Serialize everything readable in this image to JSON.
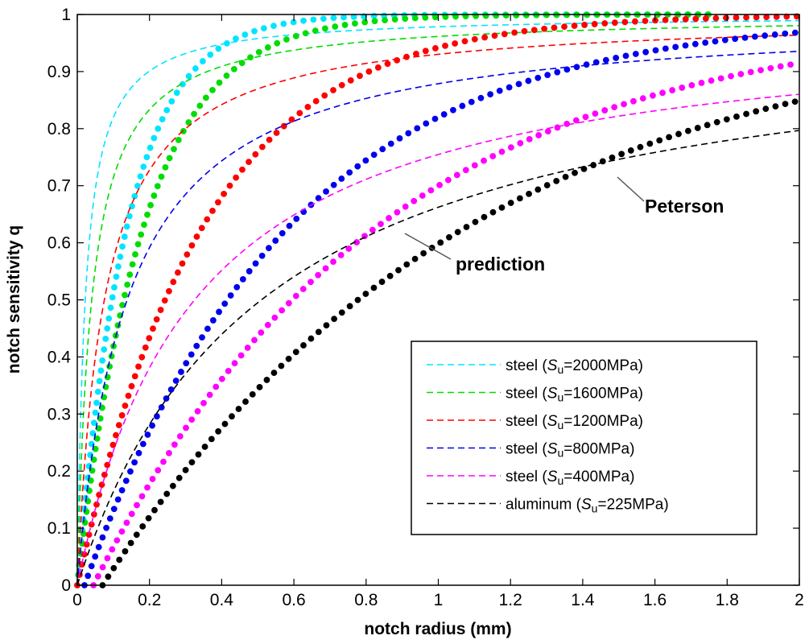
{
  "chart_data": {
    "type": "line",
    "xlabel": "notch radius (mm)",
    "ylabel": "notch sensitivity q",
    "xlim": [
      0,
      2
    ],
    "ylim": [
      0,
      1
    ],
    "x_ticks": [
      0,
      0.2,
      0.4,
      0.6,
      0.8,
      1,
      1.2,
      1.4,
      1.6,
      1.8,
      2
    ],
    "x_tick_labels": [
      "0",
      "0.2",
      "0.4",
      "0.6",
      "0.8",
      "1",
      "1.2",
      "1.4",
      "1.6",
      "1.8",
      "2"
    ],
    "y_ticks": [
      0,
      0.1,
      0.2,
      0.3,
      0.4,
      0.5,
      0.6,
      0.7,
      0.8,
      0.9,
      1
    ],
    "y_tick_labels": [
      "0",
      "0.1",
      "0.2",
      "0.3",
      "0.4",
      "0.5",
      "0.6",
      "0.7",
      "0.8",
      "0.9",
      "1"
    ],
    "grid": false,
    "legend_position": "bottom-right",
    "annotations": [
      {
        "text": "Peterson",
        "points_to": "Peterson (dashed) curves"
      },
      {
        "text": "prediction",
        "points_to": "prediction (dotted) curves"
      }
    ],
    "curve_styles": {
      "peterson": "dashed",
      "prediction": "dotted"
    },
    "series": [
      {
        "legend_prefix": "steel (",
        "legend_sym": "S",
        "legend_sub": "u",
        "legend_suffix": "=2000MPa)",
        "color": "#00e5ff",
        "peterson_a": 0.022,
        "prediction_x0": 0.0,
        "prediction_c": 7.2,
        "prediction_end_x": 1.76
      },
      {
        "legend_prefix": "steel (",
        "legend_sym": "S",
        "legend_sub": "u",
        "legend_suffix": "=1600MPa)",
        "color": "#00dd00",
        "peterson_a": 0.04,
        "prediction_x0": 0.0,
        "prediction_c": 5.4,
        "prediction_end_x": 1.76
      },
      {
        "legend_prefix": "steel (",
        "legend_sym": "S",
        "legend_sub": "u",
        "legend_suffix": "=1200MPa)",
        "color": "#ff0000",
        "peterson_a": 0.075,
        "prediction_x0": 0.0,
        "prediction_c": 2.85,
        "prediction_end_x": 2
      },
      {
        "legend_prefix": "steel (",
        "legend_sym": "S",
        "legend_sub": "u",
        "legend_suffix": "=800MPa)",
        "color": "#0000ee",
        "peterson_a": 0.138,
        "prediction_x0": 0.02,
        "prediction_c": 1.75,
        "prediction_end_x": 2
      },
      {
        "legend_prefix": "steel (",
        "legend_sym": "S",
        "legend_sub": "u",
        "legend_suffix": "=400MPa)",
        "color": "#ff00ff",
        "peterson_a": 0.325,
        "prediction_x0": 0.045,
        "prediction_c": 1.26,
        "prediction_end_x": 2
      },
      {
        "legend_prefix": "aluminum (",
        "legend_sym": "S",
        "legend_sub": "u",
        "legend_suffix": "=225MPa)",
        "color": "#000000",
        "peterson_a": 0.51,
        "prediction_x0": 0.07,
        "prediction_c": 0.98,
        "prediction_end_x": 2
      }
    ]
  }
}
